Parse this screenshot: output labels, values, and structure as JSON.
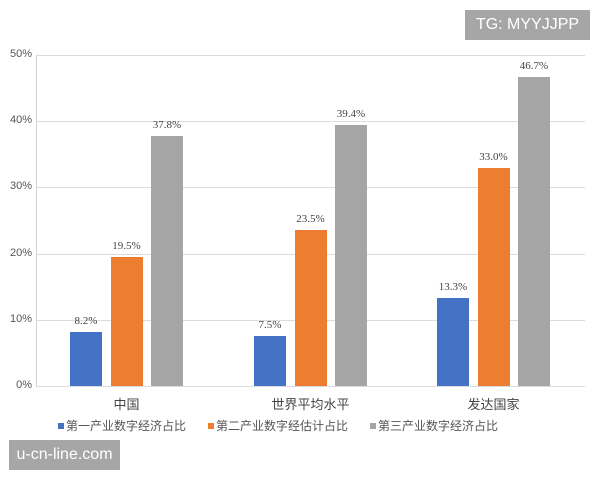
{
  "watermarks": {
    "top": "TG: MYYJJPP",
    "bottom": "u-cn-line.com"
  },
  "colors": {
    "series1": "#4472c4",
    "series2": "#ed7d31",
    "series3": "#a5a5a5"
  },
  "chart_data": {
    "type": "bar",
    "title": "",
    "xlabel": "",
    "ylabel": "",
    "ylim": [
      0,
      50
    ],
    "yticks": [
      "0%",
      "10%",
      "20%",
      "30%",
      "40%",
      "50%"
    ],
    "grid": true,
    "legend_position": "bottom",
    "categories": [
      "中国",
      "世界平均水平",
      "发达国家"
    ],
    "series": [
      {
        "name": "第一产业数字经济占比",
        "values": [
          8.2,
          7.5,
          13.3
        ],
        "labels": [
          "8.2%",
          "7.5%",
          "13.3%"
        ],
        "color": "#4472c4"
      },
      {
        "name": "第二产业数字经估计占比",
        "values": [
          19.5,
          23.5,
          33.0
        ],
        "labels": [
          "19.5%",
          "23.5%",
          "33.0%"
        ],
        "color": "#ed7d31"
      },
      {
        "name": "第三产业数字经济占比",
        "values": [
          37.8,
          39.4,
          46.7
        ],
        "labels": [
          "37.8%",
          "39.4%",
          "46.7%"
        ],
        "color": "#a5a5a5"
      }
    ]
  }
}
